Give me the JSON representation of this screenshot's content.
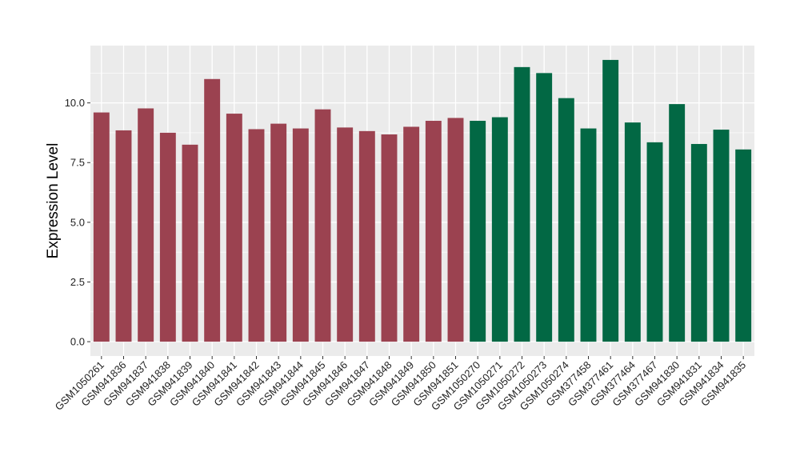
{
  "chart_data": {
    "type": "bar",
    "title": "",
    "xlabel": "",
    "ylabel": "Expression Level",
    "ylim": [
      -0.6,
      12.4
    ],
    "yticks": [
      0.0,
      2.5,
      5.0,
      7.5,
      10.0
    ],
    "ytick_labels": [
      "0.0",
      "2.5",
      "5.0",
      "7.5",
      "10.0"
    ],
    "grid": true,
    "legend": "none",
    "categories": [
      "GSM1050261",
      "GSM941836",
      "GSM941837",
      "GSM941838",
      "GSM941839",
      "GSM941840",
      "GSM941841",
      "GSM941842",
      "GSM941843",
      "GSM941844",
      "GSM941845",
      "GSM941846",
      "GSM941847",
      "GSM941848",
      "GSM941849",
      "GSM941850",
      "GSM941851",
      "GSM1050270",
      "GSM1050271",
      "GSM1050272",
      "GSM1050273",
      "GSM1050274",
      "GSM377458",
      "GSM377461",
      "GSM377464",
      "GSM377467",
      "GSM941830",
      "GSM941831",
      "GSM941834",
      "GSM941835"
    ],
    "values": [
      9.6,
      8.85,
      9.77,
      8.75,
      8.25,
      11.0,
      9.55,
      8.9,
      9.13,
      8.93,
      9.73,
      8.97,
      8.82,
      8.68,
      9.0,
      9.25,
      9.37,
      9.25,
      9.4,
      11.5,
      11.25,
      10.2,
      8.93,
      11.8,
      9.18,
      8.35,
      9.95,
      8.28,
      8.88,
      8.05
    ],
    "colors": [
      "#9b4250",
      "#9b4250",
      "#9b4250",
      "#9b4250",
      "#9b4250",
      "#9b4250",
      "#9b4250",
      "#9b4250",
      "#9b4250",
      "#9b4250",
      "#9b4250",
      "#9b4250",
      "#9b4250",
      "#9b4250",
      "#9b4250",
      "#9b4250",
      "#9b4250",
      "#026844",
      "#026844",
      "#026844",
      "#026844",
      "#026844",
      "#026844",
      "#026844",
      "#026844",
      "#026844",
      "#026844",
      "#026844",
      "#026844",
      "#026844"
    ]
  },
  "style": {
    "panel_background": "#ebebeb",
    "grid_color": "#ffffff"
  }
}
